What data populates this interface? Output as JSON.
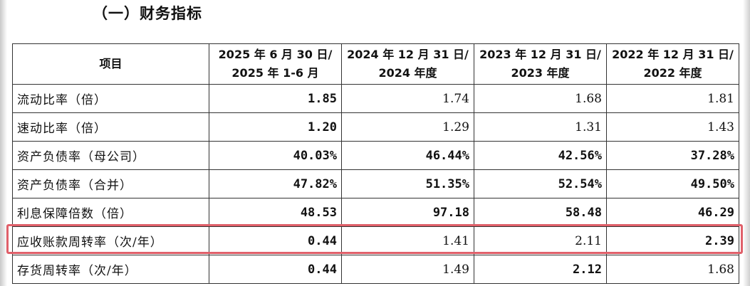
{
  "section_title": "（一）财务指标",
  "table": {
    "headers": [
      {
        "line1": "项目",
        "line2": ""
      },
      {
        "line1": "2025 年 6 月 30 日/",
        "line2": "2025 年 1-6 月"
      },
      {
        "line1": "2024 年 12 月 31 日/",
        "line2": "2024 年度"
      },
      {
        "line1": "2023 年 12 月 31 日/",
        "line2": "2023 年度"
      },
      {
        "line1": "2022 年 12 月 31 日/",
        "line2": "2022 年度"
      }
    ],
    "rows": [
      {
        "item": "流动比率（倍）",
        "v2025": "1.85",
        "v2024": "1.74",
        "v2023": "1.68",
        "v2022": "1.81",
        "bold": [
          true,
          false,
          false,
          false
        ]
      },
      {
        "item": "速动比率（倍）",
        "v2025": "1.20",
        "v2024": "1.29",
        "v2023": "1.31",
        "v2022": "1.43",
        "bold": [
          true,
          false,
          false,
          false
        ]
      },
      {
        "item": "资产负债率（母公司）",
        "v2025": "40.03%",
        "v2024": "46.44%",
        "v2023": "42.56%",
        "v2022": "37.28%",
        "bold": [
          true,
          true,
          true,
          true
        ]
      },
      {
        "item": "资产负债率（合并）",
        "v2025": "47.82%",
        "v2024": "51.35%",
        "v2023": "52.54%",
        "v2022": "49.50%",
        "bold": [
          true,
          true,
          true,
          true
        ]
      },
      {
        "item": "利息保障倍数（倍）",
        "v2025": "48.53",
        "v2024": "97.18",
        "v2023": "58.48",
        "v2022": "46.29",
        "bold": [
          true,
          true,
          true,
          true
        ]
      },
      {
        "item": "应收账款周转率（次/年）",
        "v2025": "0.44",
        "v2024": "1.41",
        "v2023": "2.11",
        "v2022": "2.39",
        "bold": [
          true,
          false,
          false,
          true
        ]
      },
      {
        "item": "存货周转率（次/年）",
        "v2025": "0.44",
        "v2024": "1.49",
        "v2023": "2.12",
        "v2022": "1.68",
        "bold": [
          true,
          false,
          true,
          false
        ]
      }
    ]
  },
  "colors": {
    "highlight": "#e0606a",
    "border": "#333333"
  }
}
